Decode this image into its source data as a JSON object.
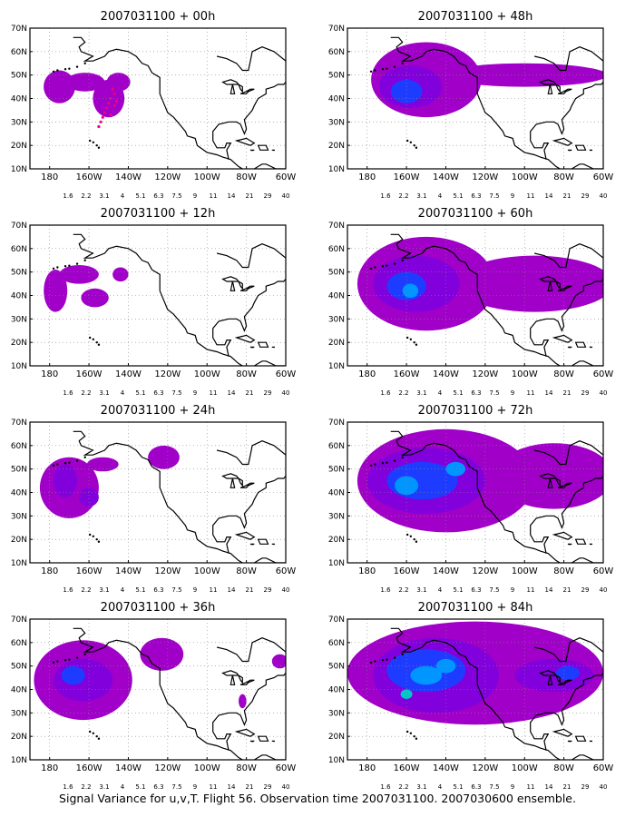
{
  "caption": "Signal Variance for u,v,T. Flight 56. Observation time 2007031100. 2007030600 ensemble.",
  "lat_labels": [
    "70N",
    "60N",
    "50N",
    "40N",
    "30N",
    "20N",
    "10N"
  ],
  "lon_labels": [
    "180",
    "160W",
    "140W",
    "120W",
    "100W",
    "80W",
    "60W"
  ],
  "colorbar": {
    "labels": [
      "1.6",
      "2.2",
      "3.1",
      "4",
      "5.1",
      "6.3",
      "7.5",
      "9",
      "11",
      "14",
      "21",
      "29",
      "40"
    ],
    "colors": [
      "#a000c8",
      "#8200dc",
      "#1e3cff",
      "#0096ff",
      "#00c8c8",
      "#00d28c",
      "#00dc00",
      "#a0e632",
      "#e6dc32",
      "#e6af2d",
      "#f08228",
      "#fa3c3c",
      "#f00082"
    ]
  },
  "land_color": "#000000",
  "panels": [
    {
      "title": "2007031100 + 00h",
      "column": "left",
      "row": 1,
      "shading": [
        {
          "level": "1.6",
          "lat": 45,
          "lon": -175,
          "rlat": 7,
          "rlon": 8
        },
        {
          "level": "1.6",
          "lat": 47,
          "lon": -162,
          "rlat": 4,
          "rlon": 10
        },
        {
          "level": "1.6",
          "lat": 40,
          "lon": -150,
          "rlat": 8,
          "rlon": 8
        },
        {
          "level": "1.6",
          "lat": 47,
          "lon": -145,
          "rlat": 4,
          "rlon": 6
        }
      ],
      "observations": [
        {
          "lat": 44,
          "lon": -148
        },
        {
          "lat": 42,
          "lon": -147
        },
        {
          "lat": 40,
          "lon": -149
        },
        {
          "lat": 38,
          "lon": -150
        },
        {
          "lat": 36,
          "lon": -151
        },
        {
          "lat": 34,
          "lon": -152
        },
        {
          "lat": 32,
          "lon": -153
        },
        {
          "lat": 30,
          "lon": -154
        },
        {
          "lat": 28,
          "lon": -155
        },
        {
          "lat": 37,
          "lon": -147
        },
        {
          "lat": 39,
          "lon": -146
        },
        {
          "lat": 33,
          "lon": -149
        }
      ]
    },
    {
      "title": "2007031100 + 12h",
      "column": "left",
      "row": 2,
      "shading": [
        {
          "level": "1.6",
          "lat": 42,
          "lon": -177,
          "rlat": 9,
          "rlon": 6
        },
        {
          "level": "1.6",
          "lat": 49,
          "lon": -165,
          "rlat": 4,
          "rlon": 10
        },
        {
          "level": "1.6",
          "lat": 39,
          "lon": -157,
          "rlat": 4,
          "rlon": 7
        },
        {
          "level": "1.6",
          "lat": 49,
          "lon": -144,
          "rlat": 3,
          "rlon": 4
        }
      ]
    },
    {
      "title": "2007031100 + 24h",
      "column": "left",
      "row": 3,
      "shading": [
        {
          "level": "1.6",
          "lat": 42,
          "lon": -170,
          "rlat": 13,
          "rlon": 15
        },
        {
          "level": "1.6",
          "lat": 52,
          "lon": -153,
          "rlat": 3,
          "rlon": 8
        },
        {
          "level": "1.6",
          "lat": 55,
          "lon": -122,
          "rlat": 5,
          "rlon": 8
        },
        {
          "level": "2.2",
          "lat": 45,
          "lon": -172,
          "rlat": 7,
          "rlon": 6
        },
        {
          "level": "2.2",
          "lat": 38,
          "lon": -160,
          "rlat": 4,
          "rlon": 5
        }
      ]
    },
    {
      "title": "2007031100 + 36h",
      "column": "left",
      "row": 4,
      "shading": [
        {
          "level": "1.6",
          "lat": 44,
          "lon": -163,
          "rlat": 17,
          "rlon": 25
        },
        {
          "level": "1.6",
          "lat": 55,
          "lon": -123,
          "rlat": 7,
          "rlon": 11
        },
        {
          "level": "1.6",
          "lat": 52,
          "lon": -63,
          "rlat": 3,
          "rlon": 4
        },
        {
          "level": "2.2",
          "lat": 44,
          "lon": -163,
          "rlat": 9,
          "rlon": 15
        },
        {
          "level": "3.1",
          "lat": 46,
          "lon": -168,
          "rlat": 4,
          "rlon": 6
        },
        {
          "level": "1.6",
          "lat": 35,
          "lon": -82,
          "rlat": 3,
          "rlon": 2
        }
      ]
    },
    {
      "title": "2007031100 + 48h",
      "column": "right",
      "row": 1,
      "shading": [
        {
          "level": "1.6",
          "lat": 48,
          "lon": -150,
          "rlat": 16,
          "rlon": 28
        },
        {
          "level": "1.6",
          "lat": 50,
          "lon": -100,
          "rlat": 5,
          "rlon": 42
        },
        {
          "level": "2.2",
          "lat": 45,
          "lon": -158,
          "rlat": 9,
          "rlon": 16
        },
        {
          "level": "3.1",
          "lat": 43,
          "lon": -160,
          "rlat": 5,
          "rlon": 8
        }
      ]
    },
    {
      "title": "2007031100 + 60h",
      "column": "right",
      "row": 2,
      "shading": [
        {
          "level": "1.6",
          "lat": 45,
          "lon": -150,
          "rlat": 20,
          "rlon": 35
        },
        {
          "level": "1.6",
          "lat": 45,
          "lon": -95,
          "rlat": 12,
          "rlon": 40
        },
        {
          "level": "2.2",
          "lat": 45,
          "lon": -155,
          "rlat": 12,
          "rlon": 22
        },
        {
          "level": "3.1",
          "lat": 44,
          "lon": -160,
          "rlat": 6,
          "rlon": 10
        },
        {
          "level": "4",
          "lat": 42,
          "lon": -158,
          "rlat": 3,
          "rlon": 4
        }
      ]
    },
    {
      "title": "2007031100 + 72h",
      "column": "right",
      "row": 3,
      "shading": [
        {
          "level": "1.6",
          "lat": 45,
          "lon": -140,
          "rlat": 22,
          "rlon": 45
        },
        {
          "level": "1.6",
          "lat": 47,
          "lon": -85,
          "rlat": 14,
          "rlon": 30
        },
        {
          "level": "2.2",
          "lat": 45,
          "lon": -150,
          "rlat": 14,
          "rlon": 30
        },
        {
          "level": "3.1",
          "lat": 45,
          "lon": -152,
          "rlat": 8,
          "rlon": 18
        },
        {
          "level": "4",
          "lat": 43,
          "lon": -160,
          "rlat": 4,
          "rlon": 6
        },
        {
          "level": "4",
          "lat": 50,
          "lon": -135,
          "rlat": 3,
          "rlon": 5
        }
      ]
    },
    {
      "title": "2007031100 + 84h",
      "column": "right",
      "row": 4,
      "shading": [
        {
          "level": "1.6",
          "lat": 47,
          "lon": -125,
          "rlat": 22,
          "rlon": 65
        },
        {
          "level": "2.2",
          "lat": 46,
          "lon": -145,
          "rlat": 16,
          "rlon": 32
        },
        {
          "level": "2.2",
          "lat": 46,
          "lon": -85,
          "rlat": 7,
          "rlon": 20
        },
        {
          "level": "3.1",
          "lat": 48,
          "lon": -150,
          "rlat": 9,
          "rlon": 20
        },
        {
          "level": "4",
          "lat": 46,
          "lon": -150,
          "rlat": 4,
          "rlon": 8
        },
        {
          "level": "4",
          "lat": 50,
          "lon": -140,
          "rlat": 3,
          "rlon": 5
        },
        {
          "level": "5.1",
          "lat": 38,
          "lon": -160,
          "rlat": 2,
          "rlon": 3
        },
        {
          "level": "3.1",
          "lat": 47,
          "lon": -78,
          "rlat": 3,
          "rlon": 6
        }
      ]
    }
  ]
}
